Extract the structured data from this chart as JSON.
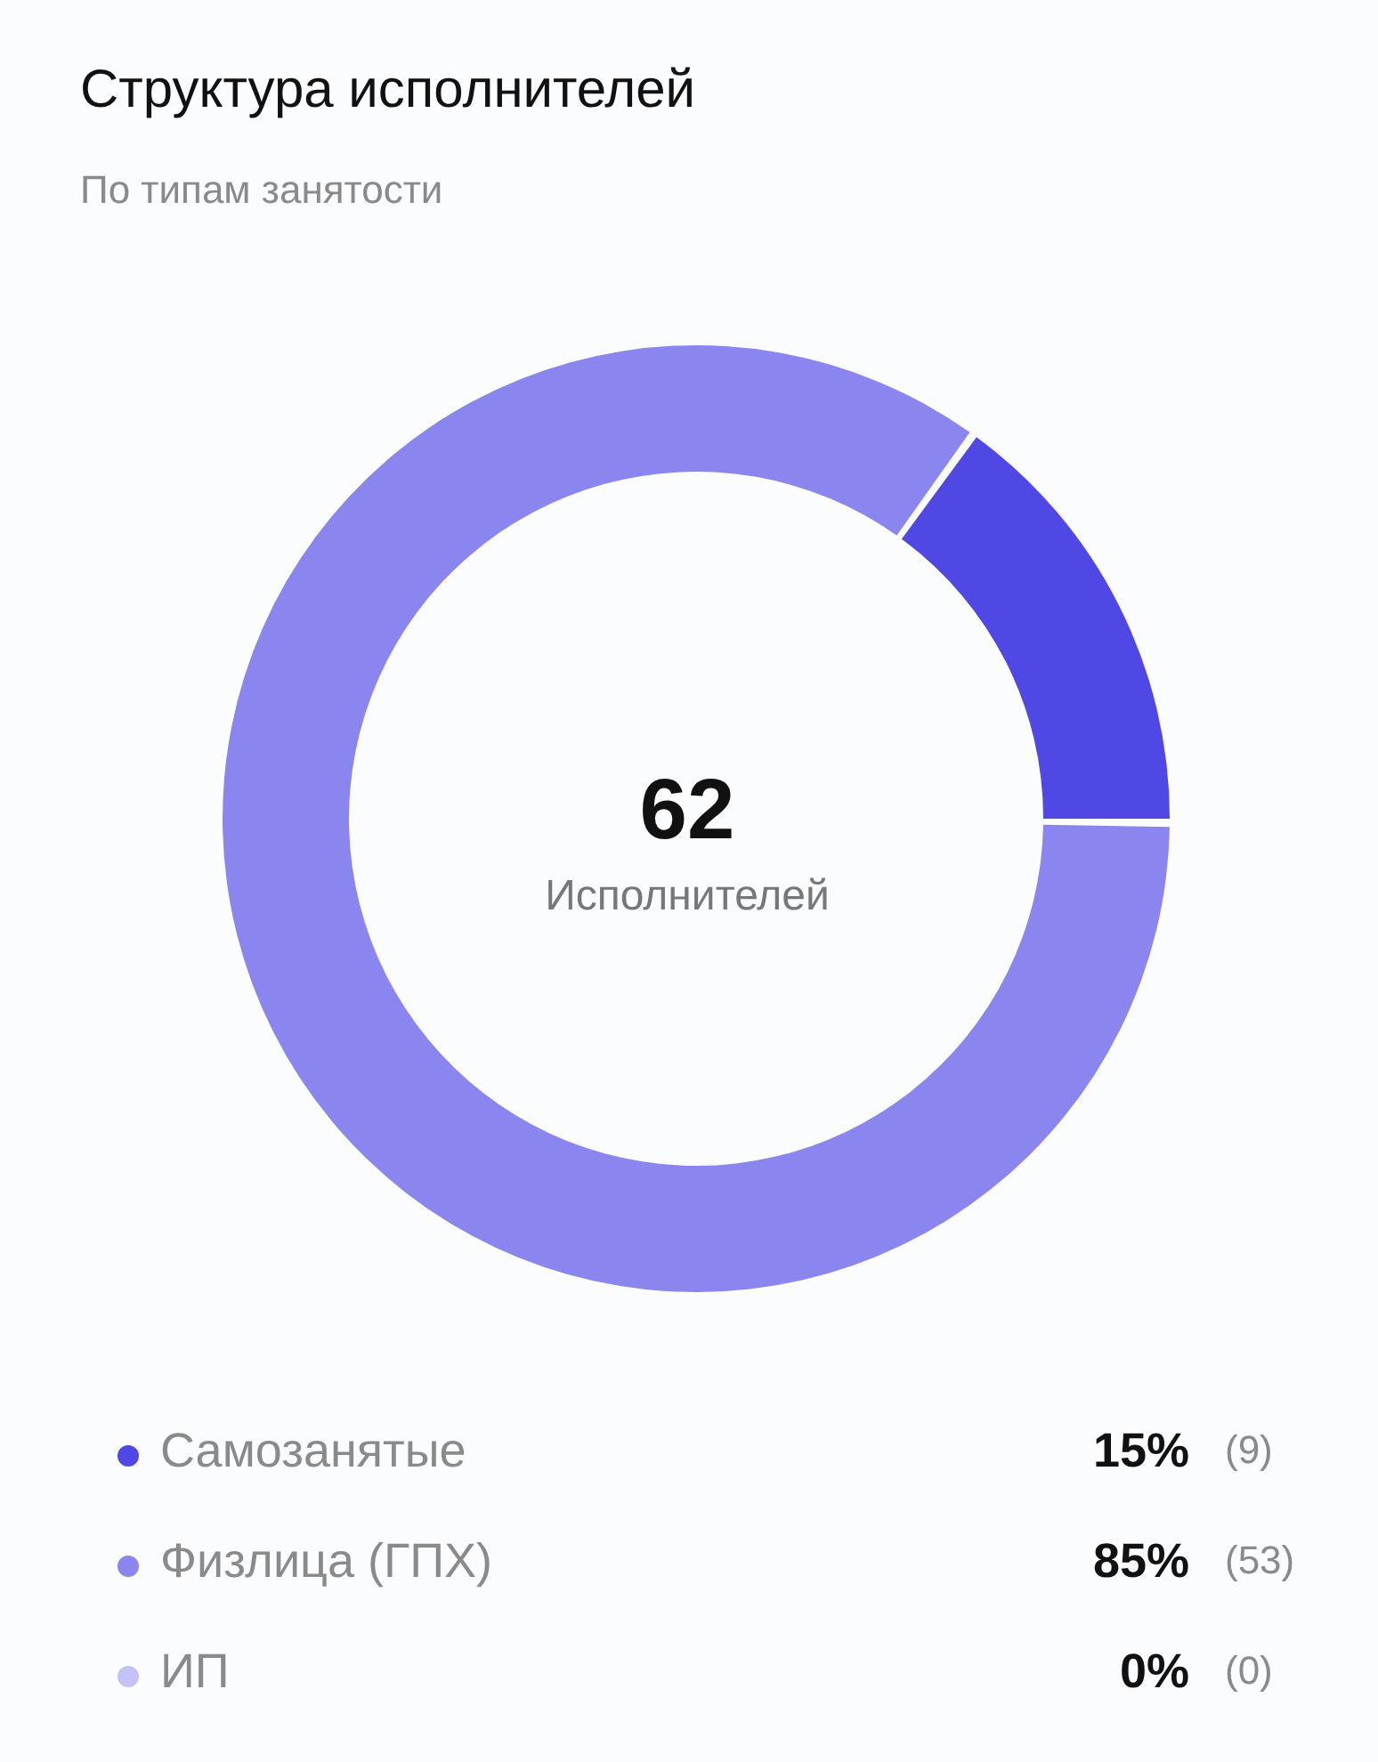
{
  "chart_data": {
    "type": "donut",
    "title": "Структура исполнителей",
    "subtitle": "По типам занятости",
    "categories": [
      "Самозанятые",
      "Физлица (ГПХ)",
      "ИП"
    ],
    "values": [
      15,
      85,
      0
    ],
    "colors": [
      "#5048e5",
      "#8b86ef",
      "#c4c1f7"
    ],
    "value_labels": [
      "15%",
      "85%",
      "0%"
    ],
    "legend": "bottom",
    "annotations": [
      "62",
      "Исполнителей",
      "(9)",
      "(53)",
      "(0)"
    ]
  }
}
